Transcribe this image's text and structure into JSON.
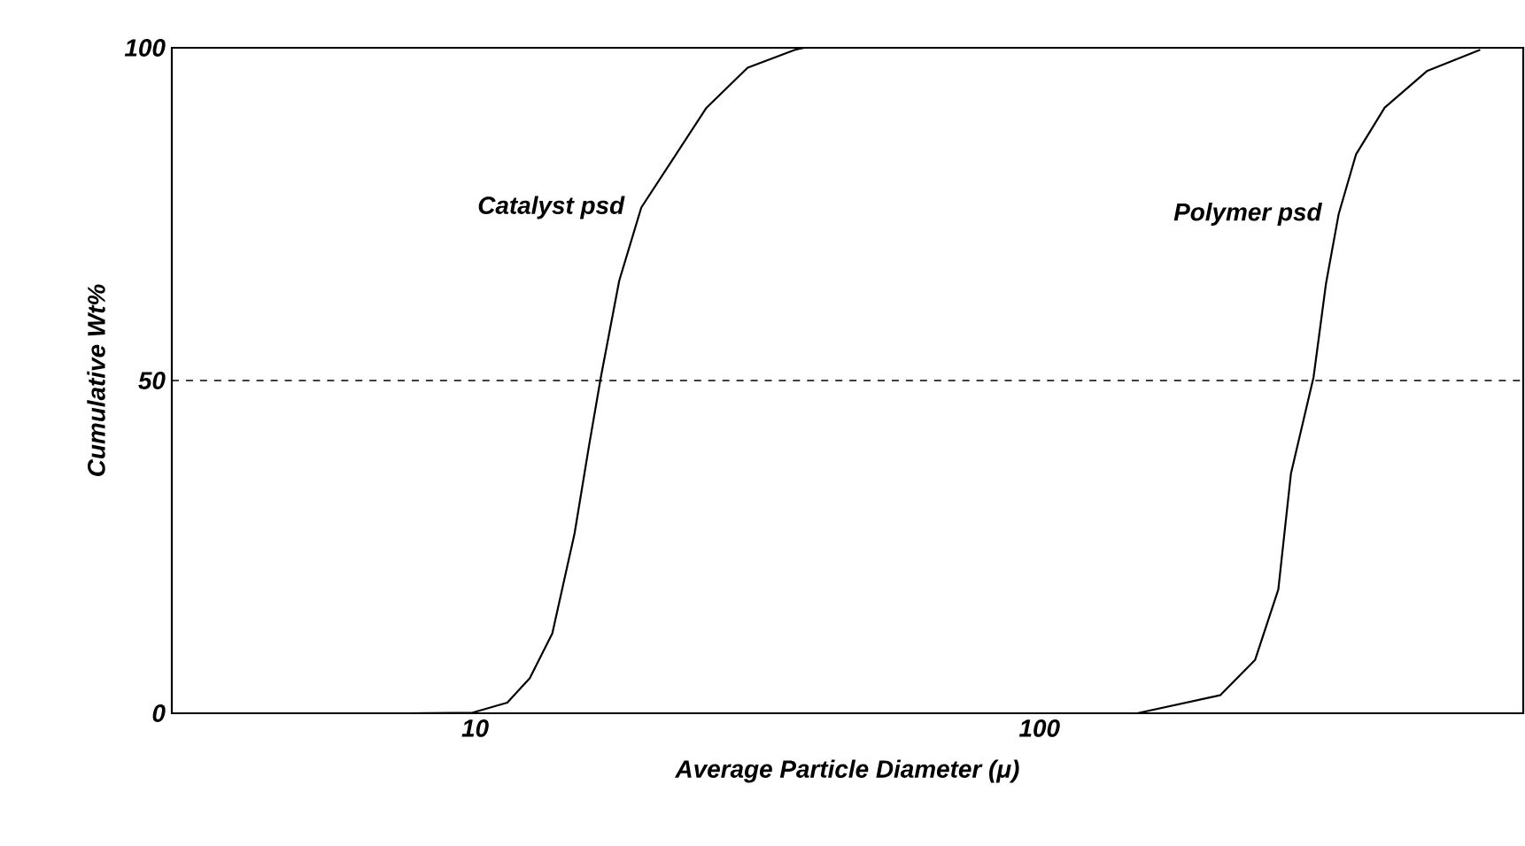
{
  "chart_data": {
    "type": "line",
    "xlabel": "Average Particle Diameter (μ)",
    "ylabel": "Cumulative Wt%",
    "log": "x",
    "xlim": [
      2.9,
      720
    ],
    "ylim": [
      0,
      100
    ],
    "xticks": [
      10,
      100
    ],
    "yticks": [
      0,
      50,
      100
    ],
    "grid": false,
    "marker": "none",
    "line_style": "solid",
    "ref_lines": [
      {
        "axis": "y",
        "value": 50,
        "line_style": "dashed",
        "color": "#000000"
      }
    ],
    "series": [
      {
        "name": "Catalyst psd",
        "color": "#000000",
        "x": [
          7.6,
          9.9,
          11.4,
          12.5,
          13.7,
          15.0,
          15.9,
          16.7,
          18.0,
          19.7,
          22.3,
          25.7,
          30.4,
          36.9,
          38.3
        ],
        "values": [
          0,
          0.1,
          1.6,
          5.3,
          12,
          27,
          40,
          50.5,
          65,
          76,
          83,
          91,
          97,
          99.7,
          100
        ]
      },
      {
        "name": "Polymer psd",
        "color": "#000000",
        "x": [
          149,
          209,
          241,
          265,
          279,
          306,
          322,
          339,
          364,
          409,
          486,
          604
        ],
        "values": [
          0,
          2.7,
          8,
          18.6,
          36,
          50.5,
          64.6,
          75,
          84,
          91,
          96.5,
          99.7
        ]
      }
    ]
  }
}
